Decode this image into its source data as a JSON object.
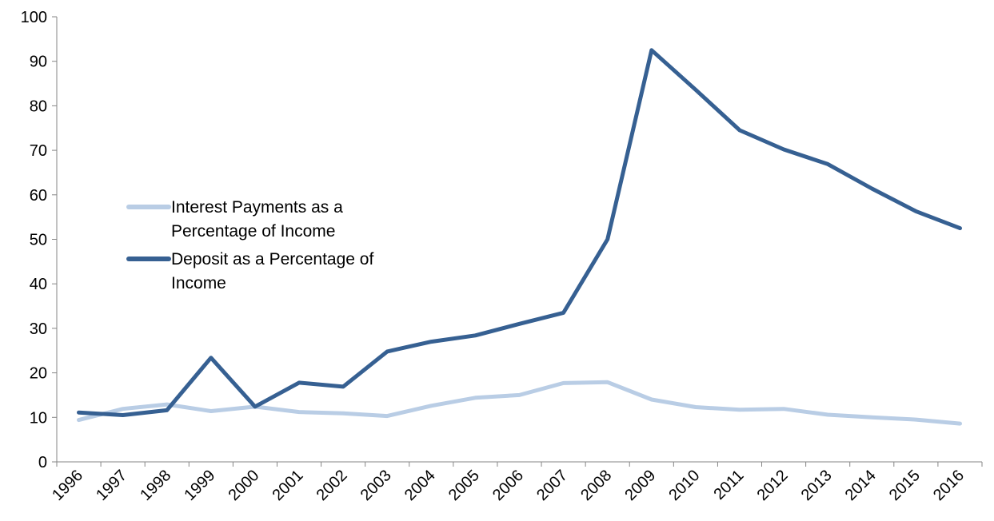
{
  "chart_data": {
    "type": "line",
    "title": "",
    "xlabel": "",
    "ylabel": "",
    "categories": [
      "1996",
      "1997",
      "1998",
      "1999",
      "2000",
      "2001",
      "2002",
      "2003",
      "2004",
      "2005",
      "2006",
      "2007",
      "2008",
      "2009",
      "2010",
      "2011",
      "2012",
      "2013",
      "2014",
      "2015",
      "2016"
    ],
    "ylim": [
      0,
      100
    ],
    "yticks": [
      0,
      10,
      20,
      30,
      40,
      50,
      60,
      70,
      80,
      90,
      100
    ],
    "grid": false,
    "legend_position": "left-center",
    "series": [
      {
        "name": "Interest Payments as a Percentage of Income",
        "color": "#b9cde5",
        "values": [
          9.4,
          11.9,
          12.9,
          11.4,
          12.4,
          11.2,
          10.9,
          10.3,
          12.6,
          14.4,
          15.0,
          17.7,
          17.9,
          14.0,
          12.3,
          11.7,
          11.9,
          10.6,
          10.0,
          9.5,
          8.6
        ]
      },
      {
        "name": "Deposit as a Percentage of Income",
        "color": "#366092",
        "values": [
          11.1,
          10.5,
          11.6,
          23.4,
          12.4,
          17.8,
          16.9,
          24.8,
          27.0,
          28.4,
          31.0,
          33.5,
          50.0,
          92.5,
          83.6,
          74.5,
          70.2,
          66.9,
          61.4,
          56.3,
          52.5
        ]
      }
    ]
  }
}
